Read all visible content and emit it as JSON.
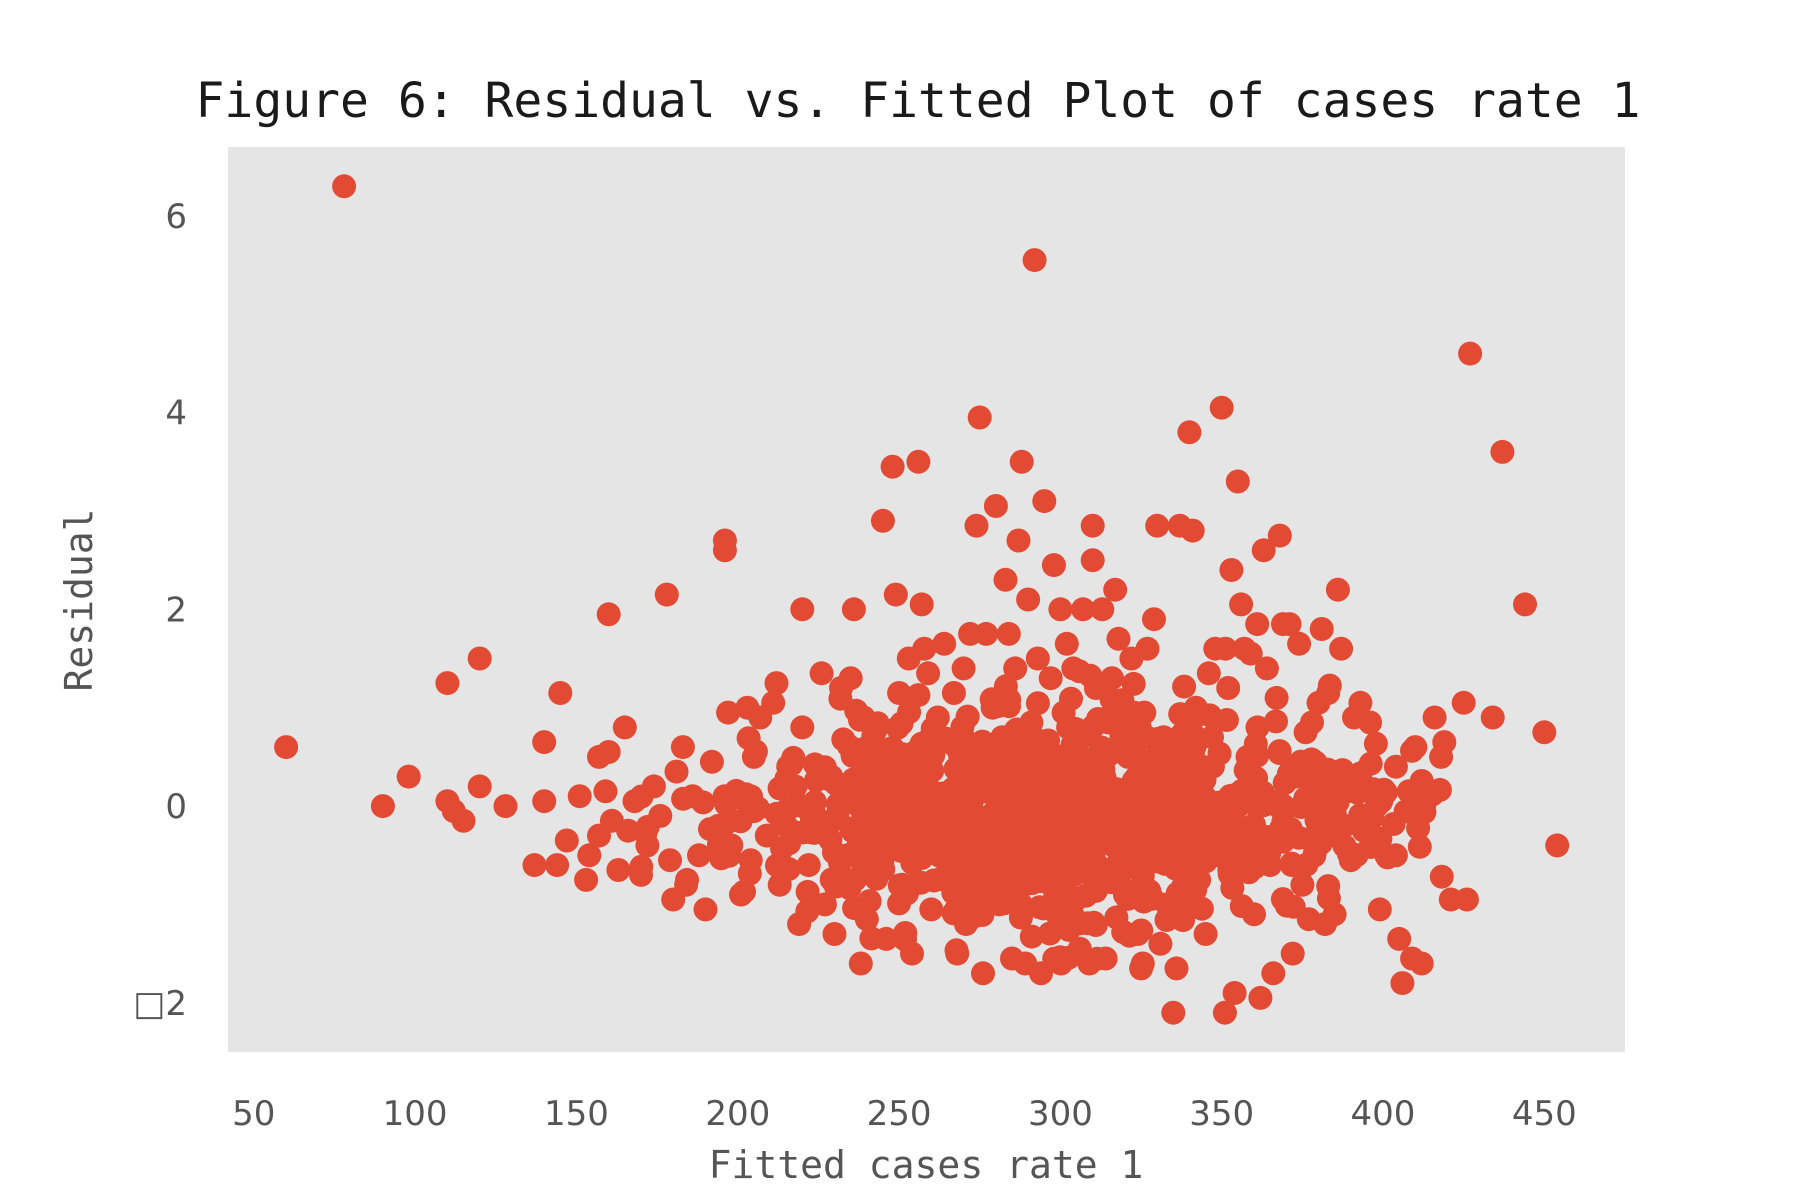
{
  "chart_data": {
    "type": "scatter",
    "title": "Figure 6: Residual vs. Fitted Plot of cases rate 1",
    "xlabel": "Fitted cases rate 1",
    "ylabel": "Residual",
    "xlim": [
      42,
      475
    ],
    "ylim": [
      -2.5,
      6.7
    ],
    "xticks": [
      50,
      100,
      150,
      200,
      250,
      300,
      350,
      400,
      450
    ],
    "xtick_labels": [
      "50",
      "100",
      "150",
      "200",
      "250",
      "300",
      "350",
      "400",
      "450"
    ],
    "yticks": [
      -2,
      0,
      2,
      4,
      6
    ],
    "ytick_labels": [
      "□2",
      "0",
      "2",
      "4",
      "6"
    ],
    "grid": false,
    "background": "#e5e5e5",
    "marker_color": "#e24a33",
    "series": [
      {
        "points": [
          [
            60,
            0.6
          ],
          [
            78,
            6.3
          ],
          [
            90,
            0.0
          ],
          [
            98,
            0.3
          ],
          [
            110,
            1.25
          ],
          [
            110,
            0.05
          ],
          [
            112,
            -0.05
          ],
          [
            115,
            -0.15
          ],
          [
            120,
            1.5
          ],
          [
            120,
            0.2
          ],
          [
            128,
            0.0
          ],
          [
            137,
            -0.6
          ],
          [
            140,
            0.65
          ],
          [
            140,
            0.05
          ],
          [
            144,
            -0.6
          ],
          [
            145,
            1.15
          ],
          [
            147,
            -0.35
          ],
          [
            151,
            0.1
          ],
          [
            153,
            -0.75
          ],
          [
            154,
            -0.5
          ],
          [
            157,
            0.5
          ],
          [
            157,
            -0.3
          ],
          [
            159,
            0.15
          ],
          [
            160,
            0.55
          ],
          [
            160,
            1.95
          ],
          [
            161,
            -0.15
          ],
          [
            163,
            -0.65
          ],
          [
            165,
            0.8
          ],
          [
            166,
            -0.25
          ],
          [
            168,
            0.05
          ],
          [
            170,
            -0.7
          ],
          [
            172,
            -0.4
          ],
          [
            174,
            0.2
          ],
          [
            176,
            -0.1
          ],
          [
            178,
            2.15
          ],
          [
            179,
            -0.55
          ],
          [
            180,
            -0.95
          ],
          [
            181,
            0.35
          ],
          [
            183,
            0.6
          ],
          [
            184,
            -0.8
          ],
          [
            186,
            0.1
          ],
          [
            188,
            -0.5
          ],
          [
            190,
            -1.05
          ],
          [
            192,
            0.45
          ],
          [
            194,
            -0.2
          ],
          [
            196,
            2.7
          ],
          [
            196,
            2.6
          ],
          [
            197,
            0.95
          ],
          [
            198,
            -0.4
          ],
          [
            200,
            0.1
          ],
          [
            201,
            -0.9
          ],
          [
            203,
            1.0
          ],
          [
            204,
            -0.55
          ],
          [
            205,
            0.5
          ],
          [
            207,
            0.9
          ],
          [
            209,
            -0.3
          ],
          [
            211,
            1.05
          ],
          [
            212,
            1.25
          ],
          [
            213,
            -0.8
          ],
          [
            215,
            -0.2
          ],
          [
            217,
            0.45
          ],
          [
            219,
            -1.2
          ],
          [
            220,
            2.0
          ],
          [
            220,
            0.8
          ],
          [
            222,
            -0.6
          ],
          [
            224,
            -0.1
          ],
          [
            226,
            1.35
          ],
          [
            227,
            -1.0
          ],
          [
            229,
            0.3
          ],
          [
            230,
            -1.3
          ],
          [
            232,
            1.2
          ],
          [
            234,
            -0.5
          ],
          [
            235,
            1.3
          ],
          [
            236,
            2.0
          ],
          [
            237,
            0.2
          ],
          [
            239,
            0.9
          ],
          [
            240,
            -1.15
          ],
          [
            242,
            0.6
          ],
          [
            243,
            -0.35
          ],
          [
            245,
            2.9
          ],
          [
            246,
            -1.35
          ],
          [
            247,
            0.4
          ],
          [
            248,
            3.45
          ],
          [
            249,
            2.15
          ],
          [
            250,
            1.15
          ],
          [
            251,
            -0.8
          ],
          [
            253,
            1.5
          ],
          [
            254,
            -1.5
          ],
          [
            255,
            0.2
          ],
          [
            256,
            3.5
          ],
          [
            257,
            2.05
          ],
          [
            258,
            0.45
          ],
          [
            259,
            1.35
          ],
          [
            260,
            -1.05
          ],
          [
            262,
            0.9
          ],
          [
            263,
            0.0
          ],
          [
            264,
            1.65
          ],
          [
            265,
            -0.55
          ],
          [
            267,
            1.15
          ],
          [
            268,
            -1.5
          ],
          [
            269,
            0.6
          ],
          [
            270,
            1.4
          ],
          [
            271,
            -1.1
          ],
          [
            272,
            1.75
          ],
          [
            273,
            0.2
          ],
          [
            274,
            2.85
          ],
          [
            275,
            3.95
          ],
          [
            276,
            -1.7
          ],
          [
            277,
            1.75
          ],
          [
            278,
            -0.4
          ],
          [
            279,
            1.0
          ],
          [
            280,
            3.05
          ],
          [
            281,
            -1.0
          ],
          [
            282,
            0.7
          ],
          [
            283,
            2.3
          ],
          [
            284,
            1.75
          ],
          [
            285,
            -1.55
          ],
          [
            286,
            1.4
          ],
          [
            287,
            2.7
          ],
          [
            288,
            3.5
          ],
          [
            289,
            -0.25
          ],
          [
            290,
            2.1
          ],
          [
            291,
            0.85
          ],
          [
            292,
            5.55
          ],
          [
            293,
            1.5
          ],
          [
            294,
            -1.7
          ],
          [
            295,
            3.1
          ],
          [
            296,
            0.4
          ],
          [
            297,
            1.3
          ],
          [
            298,
            2.45
          ],
          [
            299,
            -1.1
          ],
          [
            300,
            2.0
          ],
          [
            301,
            0.95
          ],
          [
            302,
            1.65
          ],
          [
            303,
            -0.6
          ],
          [
            304,
            1.4
          ],
          [
            305,
            0.1
          ],
          [
            306,
            -1.45
          ],
          [
            307,
            2.0
          ],
          [
            308,
            0.75
          ],
          [
            309,
            -1.6
          ],
          [
            310,
            2.85
          ],
          [
            310,
            2.5
          ],
          [
            311,
            1.2
          ],
          [
            312,
            -0.3
          ],
          [
            313,
            2.0
          ],
          [
            314,
            -1.55
          ],
          [
            315,
            0.85
          ],
          [
            316,
            1.3
          ],
          [
            317,
            2.2
          ],
          [
            318,
            1.7
          ],
          [
            320,
            -0.9
          ],
          [
            321,
            0.5
          ],
          [
            322,
            1.5
          ],
          [
            324,
            -1.3
          ],
          [
            325,
            -1.65
          ],
          [
            326,
            0.95
          ],
          [
            327,
            1.6
          ],
          [
            328,
            -0.4
          ],
          [
            329,
            1.9
          ],
          [
            330,
            2.85
          ],
          [
            331,
            -1.4
          ],
          [
            332,
            0.7
          ],
          [
            333,
            -1.0
          ],
          [
            334,
            0.2
          ],
          [
            335,
            -2.1
          ],
          [
            336,
            -1.65
          ],
          [
            337,
            2.85
          ],
          [
            338,
            0.7
          ],
          [
            339,
            -0.5
          ],
          [
            340,
            3.8
          ],
          [
            341,
            2.8
          ],
          [
            342,
            1.0
          ],
          [
            343,
            -0.75
          ],
          [
            344,
            0.4
          ],
          [
            345,
            -1.3
          ],
          [
            346,
            1.35
          ],
          [
            347,
            0.7
          ],
          [
            348,
            1.6
          ],
          [
            349,
            -0.4
          ],
          [
            350,
            4.05
          ],
          [
            351,
            -2.1
          ],
          [
            352,
            1.2
          ],
          [
            353,
            2.4
          ],
          [
            354,
            -1.9
          ],
          [
            355,
            3.3
          ],
          [
            356,
            2.05
          ],
          [
            357,
            1.6
          ],
          [
            358,
            0.5
          ],
          [
            359,
            1.55
          ],
          [
            360,
            -1.1
          ],
          [
            361,
            1.85
          ],
          [
            362,
            -1.95
          ],
          [
            363,
            2.6
          ],
          [
            364,
            1.4
          ],
          [
            365,
            -0.6
          ],
          [
            366,
            -1.7
          ],
          [
            367,
            1.1
          ],
          [
            368,
            2.75
          ],
          [
            369,
            1.85
          ],
          [
            370,
            -0.3
          ],
          [
            371,
            1.85
          ],
          [
            372,
            -1.5
          ],
          [
            373,
            0.3
          ],
          [
            374,
            1.65
          ],
          [
            375,
            -0.8
          ],
          [
            376,
            0.75
          ],
          [
            377,
            -1.15
          ],
          [
            378,
            0.85
          ],
          [
            379,
            -0.45
          ],
          [
            380,
            1.05
          ],
          [
            381,
            1.8
          ],
          [
            382,
            -1.2
          ],
          [
            383,
            1.15
          ],
          [
            384,
            0.2
          ],
          [
            385,
            -1.1
          ],
          [
            386,
            2.2
          ],
          [
            387,
            1.6
          ],
          [
            388,
            -0.2
          ],
          [
            389,
            0.15
          ],
          [
            390,
            -0.55
          ],
          [
            391,
            0.9
          ],
          [
            392,
            0.2
          ],
          [
            393,
            1.05
          ],
          [
            394,
            -0.25
          ],
          [
            396,
            0.85
          ],
          [
            398,
            0.0
          ],
          [
            399,
            -1.05
          ],
          [
            401,
            -0.5
          ],
          [
            404,
            -0.5
          ],
          [
            404,
            0.4
          ],
          [
            405,
            -1.35
          ],
          [
            406,
            -1.8
          ],
          [
            408,
            0.15
          ],
          [
            409,
            -1.55
          ],
          [
            410,
            0.6
          ],
          [
            412,
            -1.6
          ],
          [
            416,
            0.9
          ],
          [
            418,
            0.5
          ],
          [
            419,
            0.65
          ],
          [
            421,
            -0.95
          ],
          [
            425,
            1.05
          ],
          [
            426,
            -0.95
          ],
          [
            427,
            4.6
          ],
          [
            434,
            0.9
          ],
          [
            437,
            3.6
          ],
          [
            444,
            2.05
          ],
          [
            450,
            0.75
          ],
          [
            454,
            -0.4
          ]
        ]
      }
    ],
    "cluster": {
      "x_center": 300,
      "x_spread": 50,
      "y_center": -0.1,
      "y_spread": 0.65,
      "count": 900
    }
  }
}
